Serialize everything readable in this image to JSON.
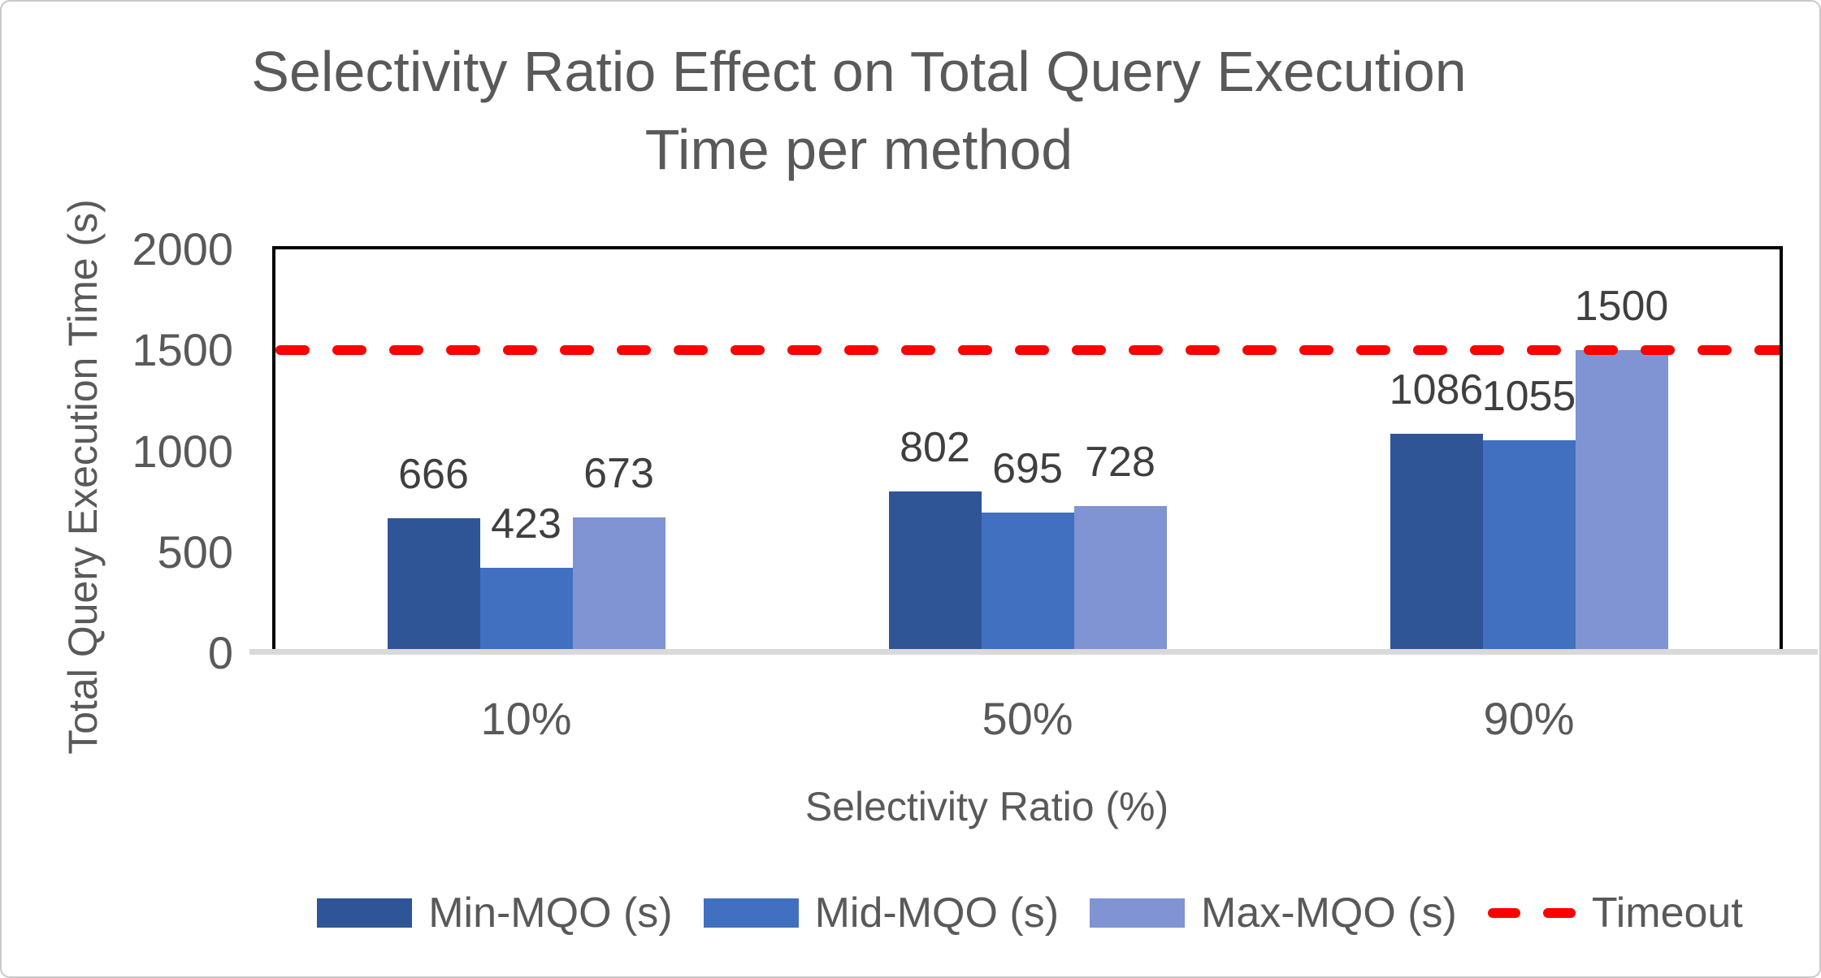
{
  "chart_data": {
    "type": "bar",
    "title": "Selectivity Ratio Effect on Total Query Execution Time per method",
    "title_lines": [
      "Selectivity Ratio Effect on Total Query Execution",
      "Time per method"
    ],
    "xlabel": "Selectivity Ratio (%)",
    "ylabel": "Total Query Execution Time (s)",
    "categories": [
      "10%",
      "50%",
      "90%"
    ],
    "series": [
      {
        "name": "Min-MQO (s)",
        "color": "#2F5597",
        "values": [
          666,
          802,
          1086
        ]
      },
      {
        "name": "Mid-MQO (s)",
        "color": "#4270C0",
        "values": [
          423,
          695,
          1055
        ]
      },
      {
        "name": "Max-MQO (s)",
        "color": "#8093D2",
        "values": [
          673,
          728,
          1500
        ]
      }
    ],
    "ylim": [
      0,
      2000
    ],
    "yticks": [
      0,
      500,
      1000,
      1500,
      2000
    ],
    "grid": false,
    "legend_position": "bottom",
    "data_labels_shown": true,
    "annotations": [
      {
        "type": "hline",
        "y": 1500,
        "label": "Timeout",
        "color": "#FF0000",
        "style": "dashed"
      }
    ]
  },
  "styles": {
    "text_color": "#595959",
    "data_label_color": "#3F3F3F",
    "plot_border_color": "#000000",
    "axis_line_color": "#D9D9D9",
    "canvas_border_color": "#C9C9C9",
    "background": "#FFFFFF"
  }
}
